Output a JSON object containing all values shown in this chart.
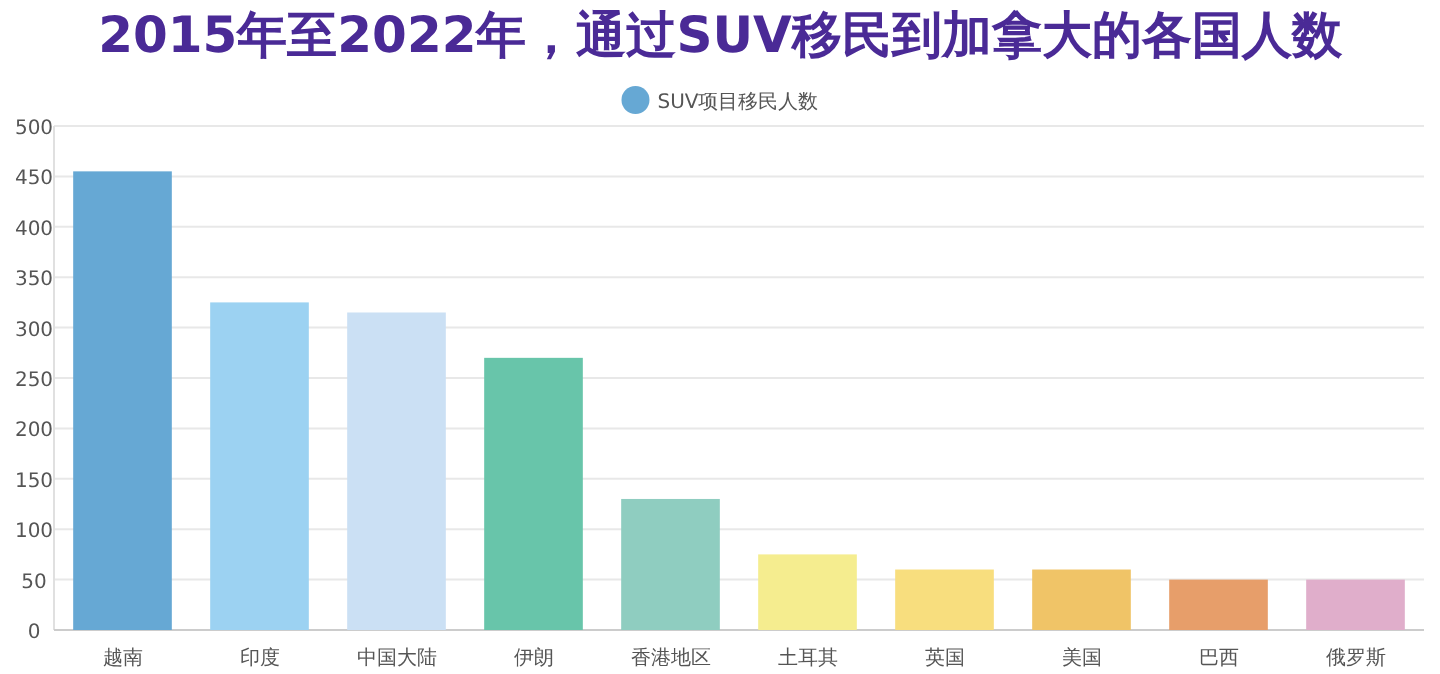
{
  "chart_data": {
    "type": "bar",
    "title": "2015年至2022年，通过SUV移民到加拿大的各国人数",
    "categories": [
      "越南",
      "印度",
      "中国大陆",
      "伊朗",
      "香港地区",
      "土耳其",
      "英国",
      "美国",
      "巴西",
      "俄罗斯"
    ],
    "series": [
      {
        "name": "SUV项目移民人数",
        "color": "#66a8d4",
        "colors": [
          "#66a8d4",
          "#9cd2f2",
          "#cbe0f4",
          "#68c5aa",
          "#8fcdc0",
          "#f5ed8f",
          "#f8de7e",
          "#f0c467",
          "#e79e6a",
          "#e0aecb"
        ],
        "values": [
          455,
          325,
          315,
          270,
          130,
          75,
          60,
          60,
          50,
          50
        ]
      }
    ],
    "ylim": [
      0,
      500
    ],
    "yticks": [
      0,
      50,
      100,
      150,
      200,
      250,
      300,
      350,
      400,
      450,
      500
    ],
    "grid": "y",
    "legend": "top"
  }
}
